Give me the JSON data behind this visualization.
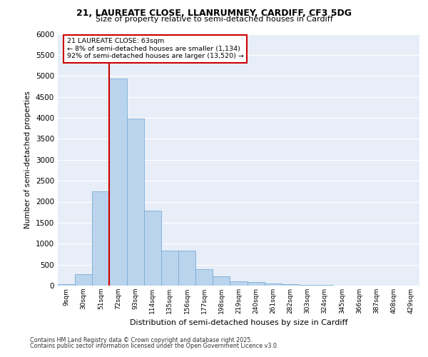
{
  "title1": "21, LAUREATE CLOSE, LLANRUMNEY, CARDIFF, CF3 5DG",
  "title2": "Size of property relative to semi-detached houses in Cardiff",
  "xlabel": "Distribution of semi-detached houses by size in Cardiff",
  "ylabel": "Number of semi-detached properties",
  "categories": [
    "9sqm",
    "30sqm",
    "51sqm",
    "72sqm",
    "93sqm",
    "114sqm",
    "135sqm",
    "156sqm",
    "177sqm",
    "198sqm",
    "219sqm",
    "240sqm",
    "261sqm",
    "282sqm",
    "303sqm",
    "324sqm",
    "345sqm",
    "366sqm",
    "387sqm",
    "408sqm",
    "429sqm"
  ],
  "values": [
    30,
    270,
    2250,
    4930,
    3980,
    1790,
    840,
    840,
    390,
    215,
    100,
    80,
    50,
    35,
    20,
    10,
    5,
    3,
    2,
    1,
    1
  ],
  "bar_color": "#bad4ed",
  "bar_edge_color": "#7aadd4",
  "annotation_box_color": "#cc0000",
  "property_label": "21 LAUREATE CLOSE: 63sqm",
  "pct_smaller": "8%",
  "n_smaller": "1,134",
  "pct_larger": "92%",
  "n_larger": "13,520",
  "vline_x": 2.5,
  "ylim": [
    0,
    6000
  ],
  "yticks": [
    0,
    500,
    1000,
    1500,
    2000,
    2500,
    3000,
    3500,
    4000,
    4500,
    5000,
    5500,
    6000
  ],
  "bg_color": "#e8eef8",
  "grid_color": "#ffffff",
  "footer1": "Contains HM Land Registry data © Crown copyright and database right 2025.",
  "footer2": "Contains public sector information licensed under the Open Government Licence v3.0."
}
